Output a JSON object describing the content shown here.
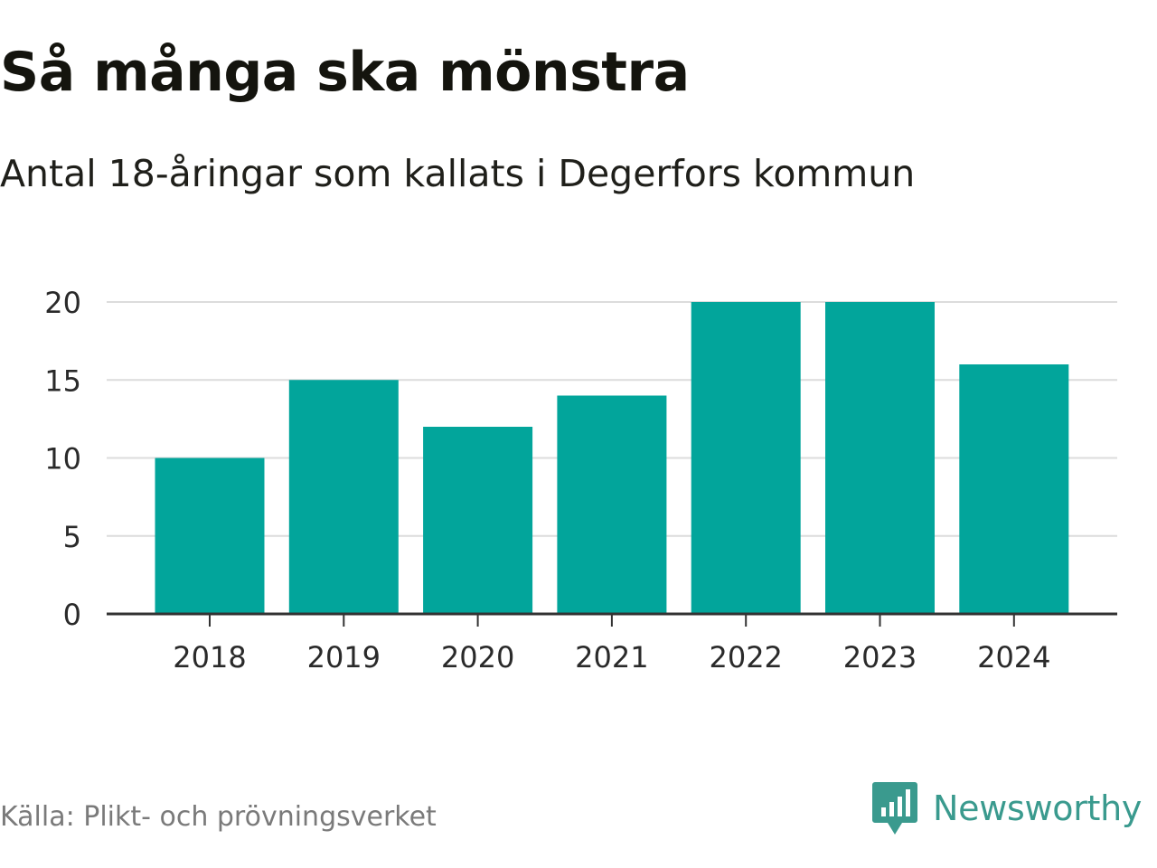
{
  "header": {
    "title": "Så många ska mönstra",
    "subtitle": "Antal 18-åringar som kallats i Degerfors kommun"
  },
  "footer": {
    "source": "Källa: Plikt- och prövningsverket",
    "brand": "Newsworthy",
    "brand_icon": "newsworthy-logo-icon"
  },
  "colors": {
    "bar": "#02a59b",
    "grid": "#dcdcdc",
    "axis": "#333333",
    "tick_text": "#2a2a2a",
    "brand": "#3a9a8e"
  },
  "chart_data": {
    "type": "bar",
    "title": "Så många ska mönstra",
    "subtitle": "Antal 18-åringar som kallats i Degerfors kommun",
    "xlabel": "",
    "ylabel": "",
    "categories": [
      "2018",
      "2019",
      "2020",
      "2021",
      "2022",
      "2023",
      "2024"
    ],
    "values": [
      10,
      15,
      12,
      14,
      20,
      20,
      16
    ],
    "ylim": [
      0,
      20
    ],
    "yticks": [
      0,
      5,
      10,
      15,
      20
    ],
    "grid": true,
    "legend": "none"
  }
}
